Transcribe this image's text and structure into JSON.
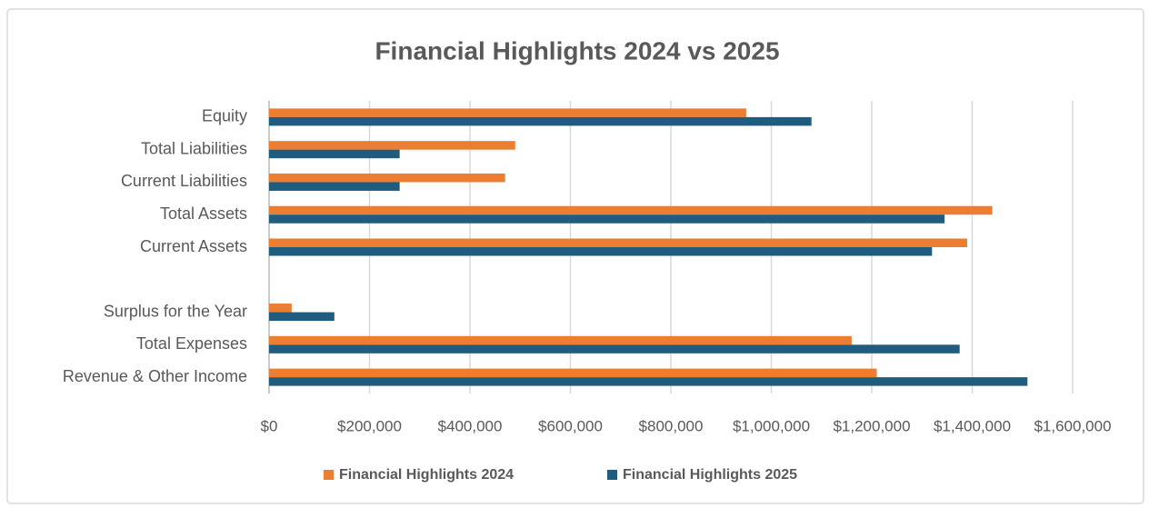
{
  "chart_data": {
    "type": "bar",
    "orientation": "horizontal",
    "title": "Financial Highlights 2024 vs 2025",
    "categories": [
      "Equity",
      "Total Liabilities",
      "Current Liabilities",
      "Total Assets",
      "Current Assets",
      null,
      "Surplus for the Year",
      "Total Expenses",
      "Revenue & Other Income"
    ],
    "series": [
      {
        "name": "Financial Highlights 2024",
        "color": "#ED7D31",
        "values": [
          950000,
          490000,
          470000,
          1440000,
          1390000,
          null,
          45000,
          1160000,
          1210000
        ]
      },
      {
        "name": "Financial Highlights 2025",
        "color": "#1F5C7E",
        "values": [
          1080000,
          260000,
          260000,
          1345000,
          1320000,
          null,
          130000,
          1375000,
          1510000
        ]
      }
    ],
    "xlim": [
      0,
      1600000
    ],
    "xticks": [
      {
        "value": 0,
        "label": "$0"
      },
      {
        "value": 200000,
        "label": "$200,000"
      },
      {
        "value": 400000,
        "label": "$400,000"
      },
      {
        "value": 600000,
        "label": "$600,000"
      },
      {
        "value": 800000,
        "label": "$800,000"
      },
      {
        "value": 1000000,
        "label": "$1,000,000"
      },
      {
        "value": 1200000,
        "label": "$1,200,000"
      },
      {
        "value": 1400000,
        "label": "$1,400,000"
      },
      {
        "value": 1600000,
        "label": "$1,600,000"
      }
    ],
    "grid": true,
    "legend": "bottom"
  }
}
